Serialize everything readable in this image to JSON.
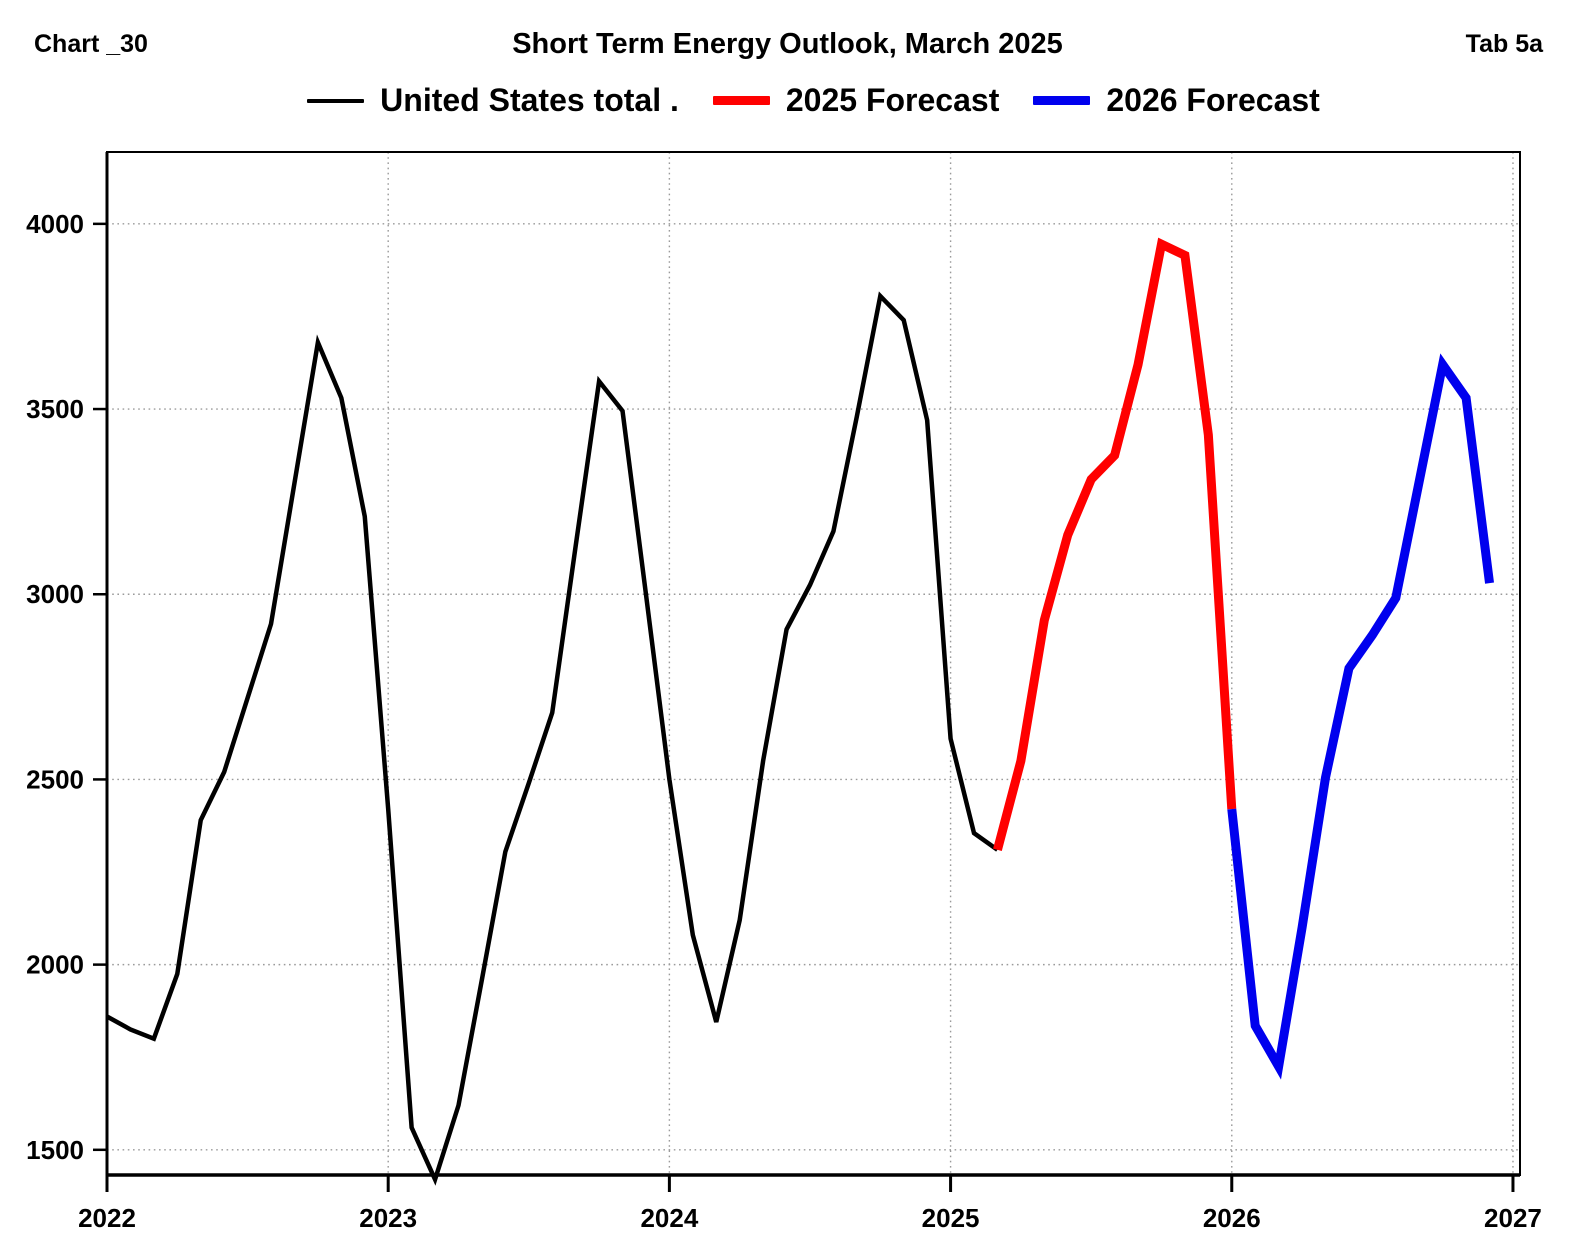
{
  "header": {
    "left_label": "Chart _30",
    "title": "Short Term Energy Outlook, March 2025",
    "right_label": "Tab 5a"
  },
  "legend": [
    {
      "label": "United States total .",
      "color": "#000000",
      "thickness": 4
    },
    {
      "label": "2025 Forecast",
      "color": "#ff0000",
      "thickness": 9
    },
    {
      "label": "2026 Forecast",
      "color": "#0000ee",
      "thickness": 9
    }
  ],
  "chart_data": {
    "type": "line",
    "title": "Short Term Energy Outlook, March 2025",
    "x_unit": "month",
    "x_start": "2022-01",
    "x_tick_labels": [
      "2022",
      "2023",
      "2024",
      "2025",
      "2026",
      "2027"
    ],
    "x_tick_months": [
      0,
      12,
      24,
      36,
      48,
      60
    ],
    "xlim_months": [
      0,
      60.3
    ],
    "y_ticks": [
      1500,
      2000,
      2500,
      3000,
      3500,
      4000
    ],
    "ylim": [
      1432,
      4194
    ],
    "grid": "dotted",
    "grid_color": "#9a9a9a",
    "frame_color": "#000000",
    "legend_position": "top-center",
    "series": [
      {
        "name": "United States total .",
        "color": "#000000",
        "width": 4.5,
        "month_start": 0,
        "values": [
          1860,
          1825,
          1800,
          1975,
          2390,
          2520,
          2720,
          2920,
          3300,
          3680,
          3530,
          3210,
          2420,
          1560,
          1420,
          1620,
          1960,
          2305,
          2490,
          2680,
          3130,
          3575,
          3495,
          3000,
          2500,
          2080,
          1845,
          2120,
          2550,
          2905,
          3025,
          3170,
          3480,
          3805,
          3740,
          3470,
          2610,
          2355,
          2310
        ]
      },
      {
        "name": "2025 Forecast",
        "color": "#ff0000",
        "width": 9,
        "month_start": 38,
        "values": [
          2310,
          2550,
          2930,
          3160,
          3310,
          3375,
          3620,
          3945,
          3915,
          3430,
          2420
        ]
      },
      {
        "name": "2026 Forecast",
        "color": "#0000ee",
        "width": 9,
        "month_start": 48,
        "values": [
          2420,
          1835,
          1725,
          2100,
          2505,
          2800,
          2890,
          2990,
          3305,
          3620,
          3530,
          3030
        ]
      }
    ]
  }
}
